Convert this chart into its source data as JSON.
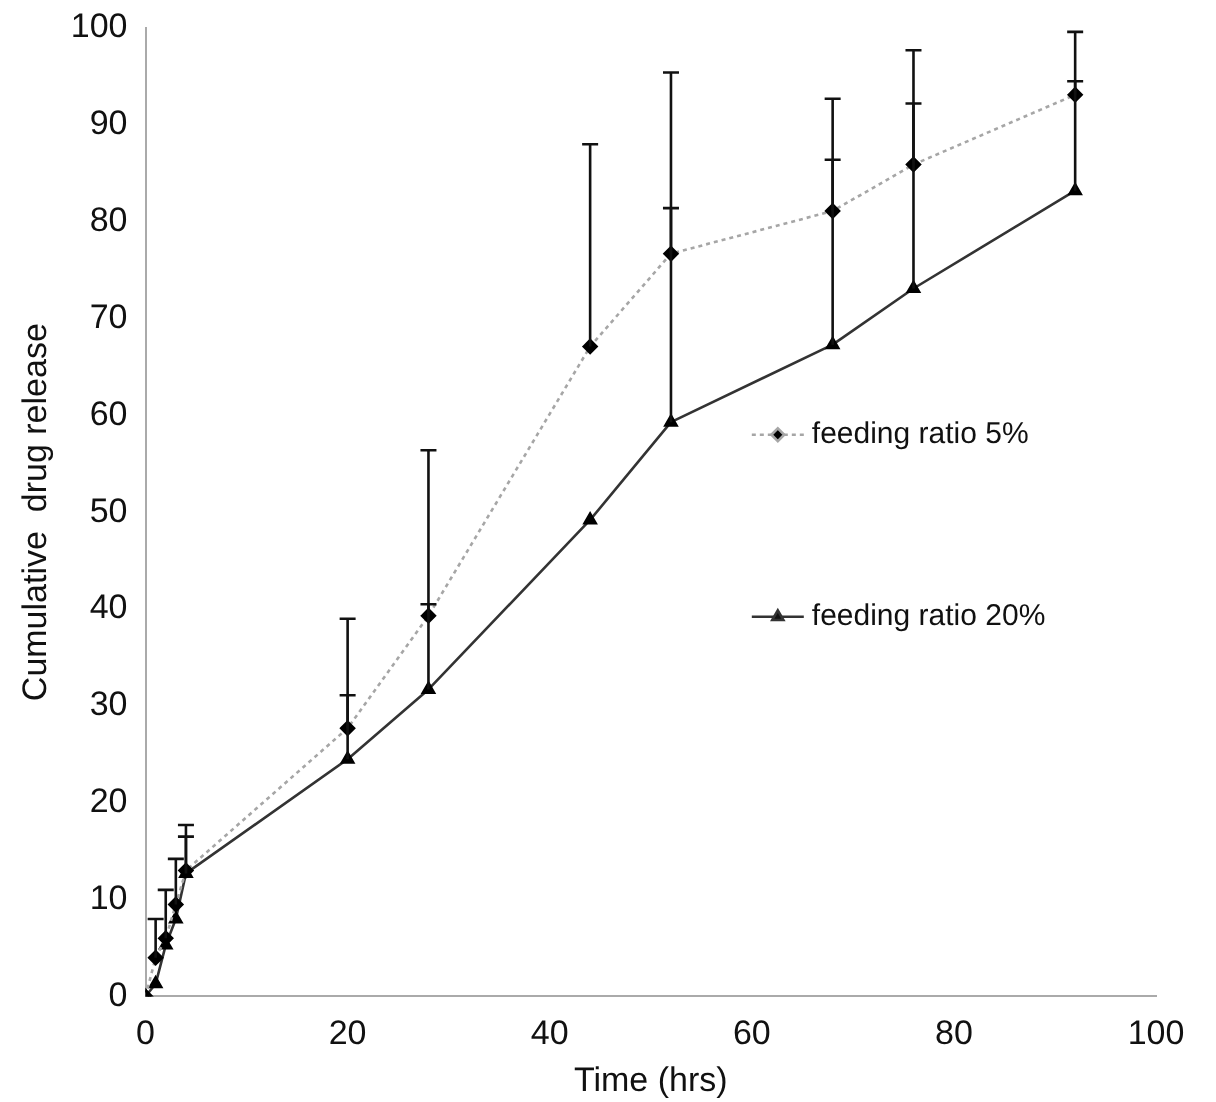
{
  "chart_data": {
    "type": "line",
    "xlabel": "Time (hrs)",
    "ylabel": "Cumulative  drug release",
    "x": [
      0,
      1,
      2,
      3,
      4,
      20,
      28,
      44,
      52,
      68,
      76,
      92
    ],
    "series": [
      {
        "name": "feeding ratio 5%",
        "color": "#a6a6a6",
        "marker": "diamond",
        "line_style": "dotted",
        "values": [
          0,
          4,
          6,
          9.5,
          13,
          27.7,
          39.3,
          67.1,
          76.7,
          81.1,
          85.9,
          93.1
        ],
        "errors": [
          null,
          [
            4,
            8
          ],
          [
            6,
            11
          ],
          [
            9.5,
            14.2
          ],
          [
            13,
            17.7
          ],
          [
            27.7,
            39
          ],
          [
            39.3,
            56.4
          ],
          [
            67.1,
            88
          ],
          [
            76.7,
            95.4
          ],
          [
            81.1,
            92.7
          ],
          [
            85.9,
            97.7
          ],
          [
            93.1,
            99.6
          ]
        ]
      },
      {
        "name": "feeding ratio 20%",
        "color": "#333333",
        "marker": "triangle",
        "line_style": "solid",
        "values": [
          0,
          1.3,
          5.3,
          8,
          12.7,
          24.5,
          31.7,
          49.2,
          59.3,
          67.3,
          73.1,
          83.2
        ],
        "errors": [
          null,
          null,
          null,
          null,
          [
            12.7,
            16.5
          ],
          [
            24.5,
            31.1
          ],
          [
            31.7,
            40.5
          ],
          null,
          [
            59.3,
            81.4
          ],
          [
            67.3,
            86.4
          ],
          [
            73.1,
            92.2
          ],
          [
            83.2,
            94.5
          ]
        ]
      }
    ],
    "xlim": [
      0,
      100
    ],
    "xticks": [
      0,
      20,
      40,
      60,
      80,
      100
    ],
    "ylim": [
      0,
      100
    ],
    "yticks": [
      0,
      10,
      20,
      30,
      40,
      50,
      60,
      70,
      80,
      90,
      100
    ],
    "grid": false,
    "legend": "right"
  }
}
